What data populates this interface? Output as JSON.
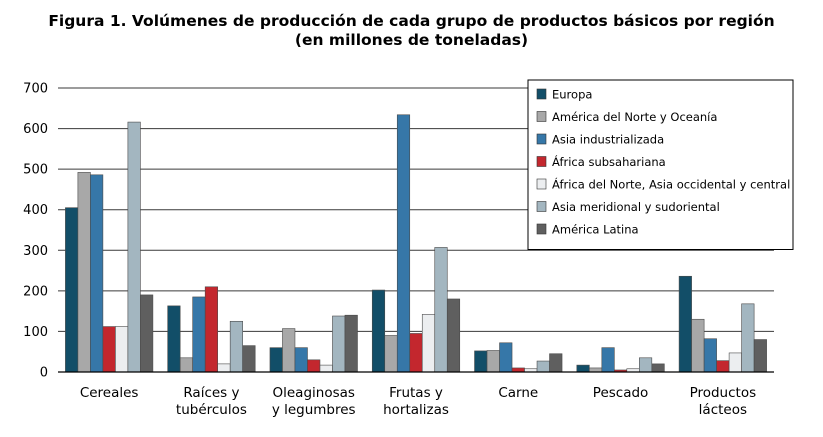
{
  "chart_data": {
    "type": "bar",
    "title_line1": "Figura 1.  Volúmenes de producción de cada grupo de productos básicos por región",
    "title_line2": "(en millones de toneladas)",
    "xlabel": "",
    "ylabel": "",
    "ylim": [
      0,
      700
    ],
    "yticks": [
      "0",
      "100",
      "200",
      "300",
      "400",
      "500",
      "600",
      "700"
    ],
    "grid": true,
    "legend_position": "top-right",
    "categories": [
      [
        "Cereales"
      ],
      [
        "Raíces y",
        "tubérculos"
      ],
      [
        "Oleaginosas",
        "y legumbres"
      ],
      [
        "Frutas y",
        "hortalizas"
      ],
      [
        "Carne"
      ],
      [
        "Pescado"
      ],
      [
        "Productos",
        "lácteos"
      ]
    ],
    "series": [
      {
        "name": "Europa",
        "color": "#124e68",
        "values": [
          405,
          163,
          60,
          202,
          52,
          17,
          236
        ]
      },
      {
        "name": "América del Norte y Oceanía",
        "color": "#a8a8a8",
        "values": [
          492,
          35,
          107,
          90,
          53,
          10,
          130
        ]
      },
      {
        "name": "Asia industrializada",
        "color": "#3677a8",
        "values": [
          486,
          185,
          60,
          634,
          72,
          60,
          82
        ]
      },
      {
        "name": "África subsahariana",
        "color": "#c3272e",
        "values": [
          112,
          210,
          30,
          95,
          10,
          5,
          28
        ]
      },
      {
        "name": "África del Norte, Asia occidental y central",
        "color": "#eceef0",
        "values": [
          112,
          20,
          17,
          142,
          8,
          8,
          47
        ]
      },
      {
        "name": "Asia meridional y sudoriental",
        "color": "#a3b6c0",
        "values": [
          616,
          125,
          138,
          307,
          27,
          35,
          168
        ]
      },
      {
        "name": "América Latina",
        "color": "#5f5f5f",
        "values": [
          190,
          65,
          140,
          180,
          45,
          20,
          80
        ]
      }
    ]
  }
}
